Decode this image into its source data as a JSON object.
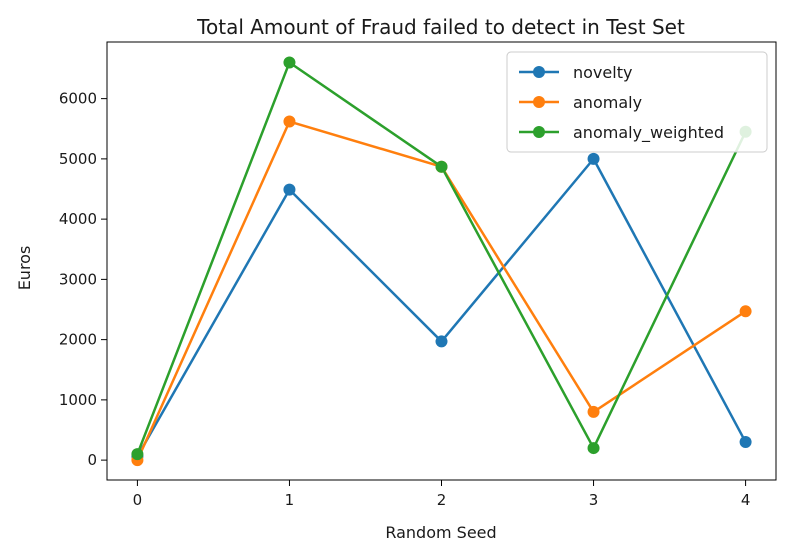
{
  "chart_data": {
    "type": "line",
    "title": "Total Amount of Fraud failed to detect in Test Set",
    "xlabel": "Random Seed",
    "ylabel": "Euros",
    "x": [
      0,
      1,
      2,
      3,
      4
    ],
    "x_ticks": [
      "0",
      "1",
      "2",
      "3",
      "4"
    ],
    "y_ticks": [
      "0",
      "1000",
      "2000",
      "3000",
      "4000",
      "5000",
      "6000"
    ],
    "xlim": [
      -0.2,
      4.2
    ],
    "ylim": [
      -330,
      6940
    ],
    "grid": false,
    "legend_position": "top-right",
    "series": [
      {
        "name": "novelty",
        "color": "#1f77b4",
        "values": [
          60,
          4490,
          1970,
          5000,
          300
        ]
      },
      {
        "name": "anomaly",
        "color": "#ff7f0e",
        "values": [
          0,
          5620,
          4870,
          800,
          2470
        ]
      },
      {
        "name": "anomaly_weighted",
        "color": "#2ca02c",
        "values": [
          100,
          6600,
          4870,
          200,
          5450
        ]
      }
    ]
  }
}
